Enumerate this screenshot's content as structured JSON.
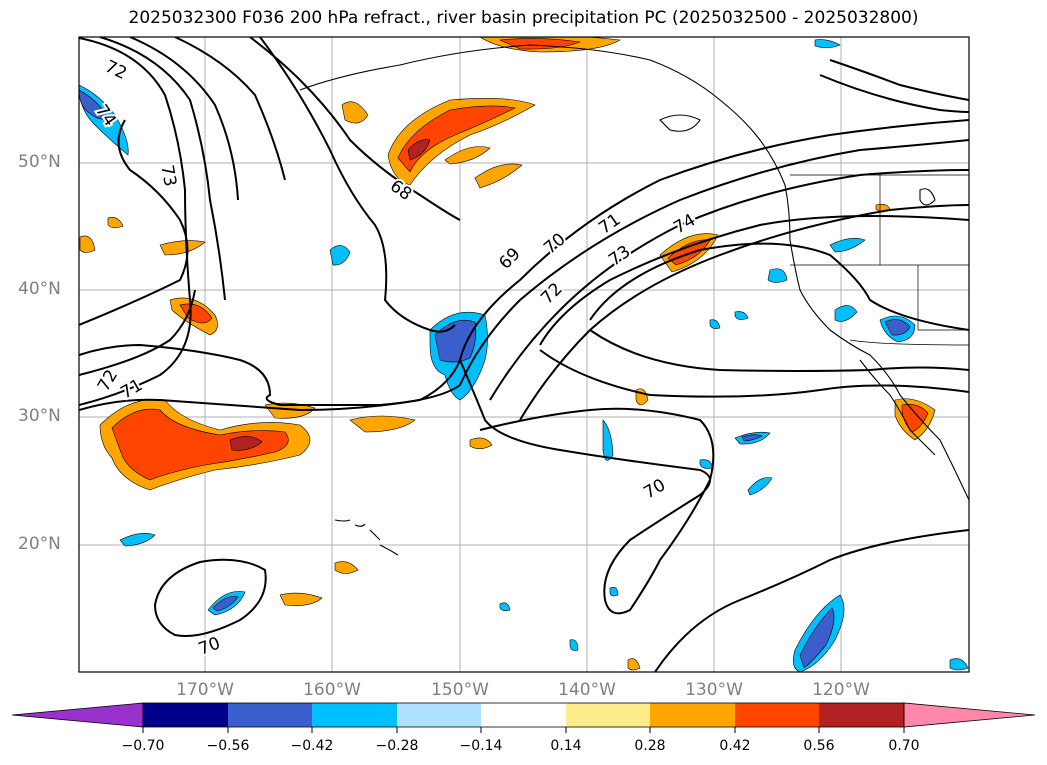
{
  "title": "2025032300 F036 200 hPa refract., river basin precipitation PC (2025032500 - 2025032800)",
  "axes": {
    "lat_labels": [
      "50°N",
      "40°N",
      "30°N",
      "20°N"
    ],
    "lon_labels": [
      "170°W",
      "160°W",
      "150°W",
      "140°W",
      "130°W",
      "120°W"
    ],
    "lat_range": [
      10,
      60
    ],
    "lon_range": [
      -180,
      -110
    ],
    "grid": true
  },
  "contour_labels": [
    "72",
    "74",
    "73",
    "68",
    "69",
    "70",
    "71",
    "72",
    "73",
    "74",
    "72",
    "71",
    "70",
    "70"
  ],
  "colorbar": {
    "ticks": [
      "−0.70",
      "−0.56",
      "−0.42",
      "−0.28",
      "−0.14",
      "0.14",
      "0.28",
      "0.42",
      "0.56",
      "0.70"
    ],
    "colors": [
      "#9932cc",
      "#00008b",
      "#3a5fcd",
      "#00bfff",
      "#b0e2ff",
      "#ffffff",
      "#ffec8b",
      "#ffa500",
      "#ff4500",
      "#b22222",
      "#ff88aa"
    ],
    "extend": "both"
  }
}
